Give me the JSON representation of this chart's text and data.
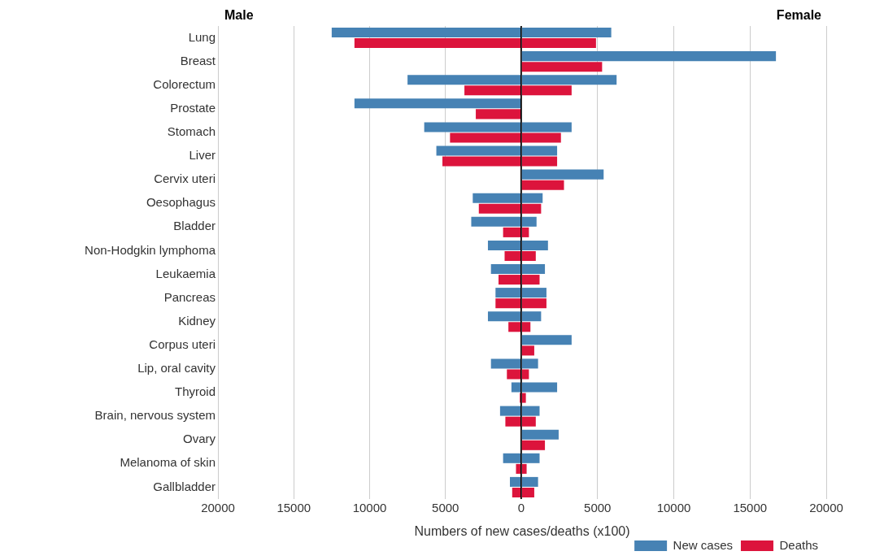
{
  "chart_data": [
    {
      "type": "bar",
      "orientation": "horizontal",
      "title": "Male",
      "categories": [
        "Lung",
        "Breast",
        "Colorectum",
        "Prostate",
        "Stomach",
        "Liver",
        "Cervix uteri",
        "Oesophagus",
        "Bladder",
        "Non-Hodgkin lymphoma",
        "Leukaemia",
        "Pancreas",
        "Kidney",
        "Corpus uteri",
        "Lip, oral cavity",
        "Thyroid",
        "Brain, nervous system",
        "Ovary",
        "Melanoma of skin",
        "Gallbladder"
      ],
      "series": [
        {
          "color": "#4682b4",
          "values": [
            12500,
            null,
            7500,
            11000,
            6400,
            5600,
            null,
            3200,
            3300,
            2200,
            2000,
            1700,
            2200,
            null,
            2000,
            650,
            1400,
            null,
            1200,
            750
          ]
        },
        {
          "color": "#dc143c",
          "values": [
            11000,
            null,
            3750,
            3000,
            4700,
            5200,
            null,
            2800,
            1200,
            1100,
            1500,
            1700,
            850,
            null,
            950,
            100,
            1050,
            null,
            350,
            600
          ]
        }
      ],
      "xlim": [
        20000,
        0
      ],
      "xticks": [
        0,
        5000,
        10000,
        15000,
        20000
      ],
      "grid": "x",
      "legend": false
    },
    {
      "type": "bar",
      "orientation": "horizontal",
      "title": "Female",
      "xlabel": "Numbers of new cases/deaths (x100)",
      "categories": [
        null,
        null,
        null,
        null,
        null,
        null,
        null,
        null,
        null,
        null,
        null,
        null,
        null,
        null,
        null,
        null,
        null,
        null,
        null,
        null
      ],
      "series": [
        {
          "name": "New cases",
          "color": "#4682b4",
          "values": [
            5900,
            16700,
            6250,
            null,
            3300,
            2350,
            5400,
            1400,
            1000,
            1750,
            1550,
            1650,
            1300,
            3300,
            1100,
            2350,
            1200,
            2450,
            1200,
            1100
          ]
        },
        {
          "name": "Deaths",
          "color": "#dc143c",
          "values": [
            4900,
            5300,
            3300,
            null,
            2600,
            2350,
            2800,
            1300,
            500,
            950,
            1200,
            1650,
            600,
            850,
            500,
            300,
            950,
            1550,
            350,
            850
          ]
        }
      ],
      "xlim": [
        0,
        20000
      ],
      "xticks": [
        {
          "value": 0,
          "label": null
        },
        5000,
        10000,
        15000,
        20000
      ],
      "grid": "x",
      "legend": "bottom right",
      "tick_labels": "x"
    }
  ]
}
